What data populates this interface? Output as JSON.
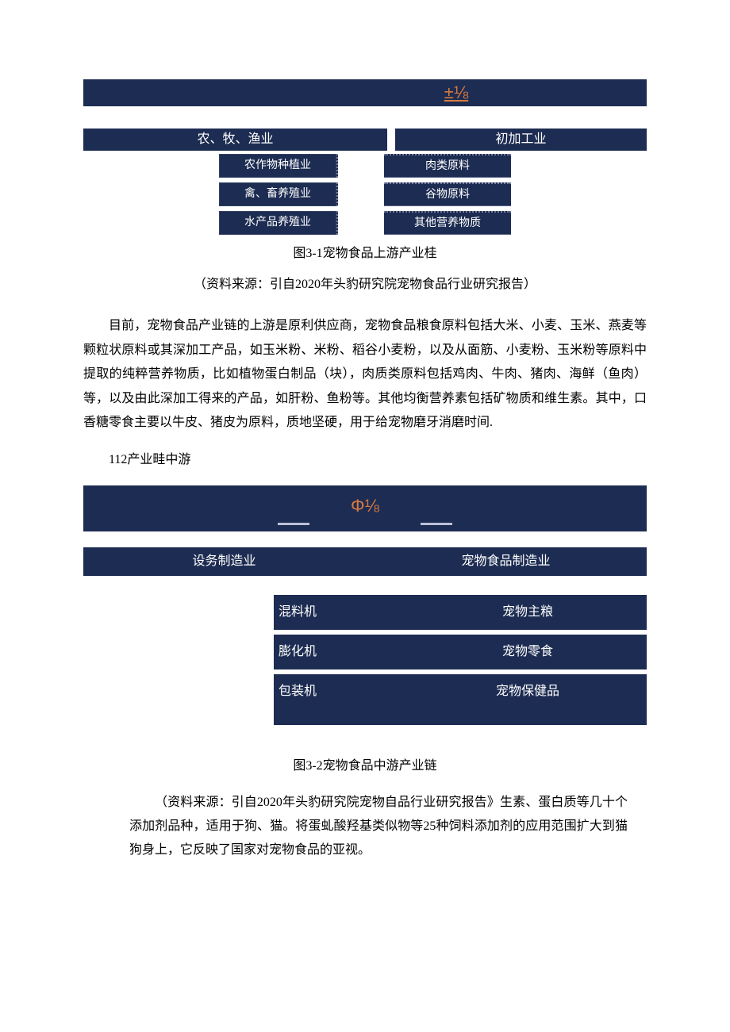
{
  "colors": {
    "band_bg": "#1d2c52",
    "accent_orange": "#d77a3f",
    "page_bg": "#ffffff",
    "text": "#000000",
    "box_text": "#ffffff",
    "dotted_border": "#7a80a0",
    "line": "#b9c0d8"
  },
  "typography": {
    "body_font": "SimSun",
    "body_size_pt": 12,
    "caption_size_pt": 12,
    "banner_label_size_pt": 16
  },
  "banner_top": {
    "label": "±⅛"
  },
  "diagram1": {
    "type": "flowchart",
    "header_left": "农、牧、渔业",
    "header_right": "初加工业",
    "left_items": [
      "农作物种植业",
      "禽、畜养殖业",
      "水产品养殖业"
    ],
    "right_items": [
      "肉类原料",
      "谷物原料",
      "其他营养物质"
    ],
    "caption": "图3-1宠物食品上游产业桂",
    "source": "（资料来源：引自2020年头豹研究院宠物食品行业研究报告）"
  },
  "paragraph1": "目前，宠物食品产业链的上游是原利供应商，宠物食品粮食原料包括大米、小麦、玉米、燕麦等颗粒状原料或其深加工产品，如玉米粉、米粉、稻谷小麦粉，以及从面筋、小麦粉、玉米粉等原料中提取的纯粹营养物质，比如植物蛋白制品（块），肉质类原料包括鸡肉、牛肉、猪肉、海鲜（鱼肉）等，以及由此深加工得来的产品，如肝粉、鱼粉等。其他均衡营养素包括矿物质和维生素。其中，口香糖零食主要以牛皮、猪皮为原料，质地坚硬，用于给宠物磨牙消磨时间.",
  "subheading": "112产业畦中游",
  "banner_mid": {
    "label": "Φ⅛"
  },
  "diagram2": {
    "type": "table",
    "header_left": "设务制造业",
    "header_right": "宠物食品制造业",
    "rows": [
      {
        "left": "混料机",
        "right": "宠物主粮"
      },
      {
        "left": "膨化机",
        "right": "宠物零食"
      },
      {
        "left": "包装机",
        "right": "宠物保健品"
      }
    ],
    "caption": "图3-2宠物食品中游产业链"
  },
  "paragraph2": "（资料来源：引自2020年头豹研究院宠物自品行业研究报告》生素、蛋白质等几十个添加剂品种，适用于狗、猫。将蛋虬酸羟基类似物等25种饲料添加剂的应用范围扩大到猫狗身上，它反映了国家对宠物食品的亚视。"
}
